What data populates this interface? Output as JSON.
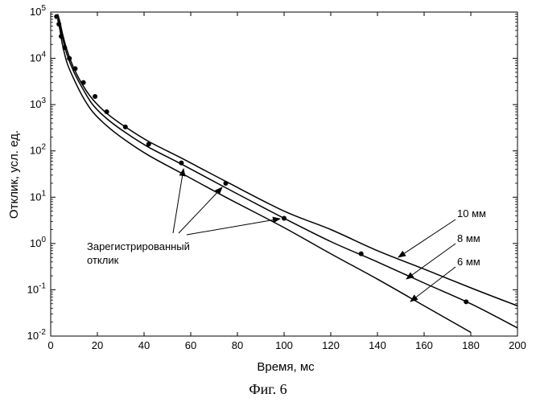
{
  "chart_data": {
    "type": "line",
    "xlabel": "Время, мс",
    "ylabel": "Отклик, усл. ед.",
    "caption": "Фиг. 6",
    "xlim": [
      0,
      200
    ],
    "ylim": [
      0.01,
      100000
    ],
    "yscale": "log",
    "grid": false,
    "x_ticks": [
      0,
      20,
      40,
      60,
      80,
      100,
      120,
      140,
      160,
      180,
      200
    ],
    "y_ticks": [
      {
        "value": 0.01,
        "base": "10",
        "exp": "-2"
      },
      {
        "value": 0.1,
        "base": "10",
        "exp": "-1"
      },
      {
        "value": 1,
        "base": "10",
        "exp": "0"
      },
      {
        "value": 10,
        "base": "10",
        "exp": "1"
      },
      {
        "value": 100,
        "base": "10",
        "exp": "2"
      },
      {
        "value": 1000,
        "base": "10",
        "exp": "3"
      },
      {
        "value": 10000,
        "base": "10",
        "exp": "4"
      },
      {
        "value": 100000,
        "base": "10",
        "exp": "5"
      }
    ],
    "series": [
      {
        "name": "10 мм",
        "x": [
          3,
          4,
          5,
          7,
          10,
          14,
          18,
          24,
          32,
          42,
          56,
          75,
          100,
          120,
          140,
          160,
          180,
          200
        ],
        "y": [
          90000,
          60000,
          35000,
          15000,
          6000,
          2500,
          1300,
          650,
          330,
          160,
          70,
          22,
          5,
          2,
          0.7,
          0.28,
          0.11,
          0.045
        ]
      },
      {
        "name": "8 мм",
        "x": [
          3,
          4,
          5,
          7,
          10,
          14,
          18,
          24,
          32,
          42,
          56,
          75,
          100,
          120,
          140,
          160,
          180,
          200
        ],
        "y": [
          80000,
          50000,
          28000,
          12000,
          5000,
          2100,
          1000,
          500,
          250,
          120,
          52,
          16,
          3.5,
          1.1,
          0.4,
          0.14,
          0.05,
          0.015
        ]
      },
      {
        "name": "6 мм",
        "x": [
          3,
          4,
          5,
          7,
          10,
          14,
          18,
          24,
          32,
          42,
          56,
          75,
          100,
          120,
          140,
          160,
          180
        ],
        "y": [
          70000,
          40000,
          20000,
          8000,
          3500,
          1400,
          700,
          350,
          170,
          80,
          33,
          10,
          2.2,
          0.6,
          0.17,
          0.045,
          0.012
        ]
      }
    ],
    "measured": {
      "name": "Зарегистрированный отклик",
      "x": [
        2.5,
        3.5,
        4.5,
        6,
        8,
        10.5,
        14,
        19,
        24,
        32,
        42,
        56,
        75,
        100,
        133,
        178
      ],
      "y": [
        80000,
        55000,
        30000,
        17000,
        10000,
        6000,
        3000,
        1500,
        700,
        330,
        140,
        55,
        20,
        3.5,
        0.6,
        0.055
      ]
    },
    "annotations": {
      "measured_label": [
        "Зарегистрированный",
        "отклик"
      ],
      "curve_labels": [
        "10 мм",
        "8 мм",
        "6 мм"
      ]
    }
  }
}
